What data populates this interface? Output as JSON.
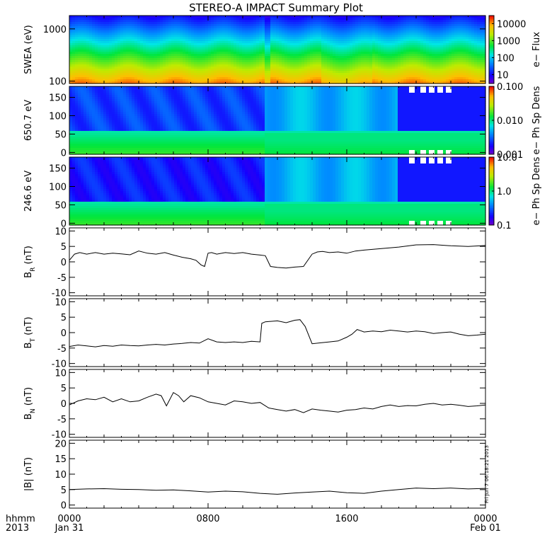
{
  "title": "STEREO-A IMPACT Summary Plot",
  "timestamp": "Fri Jun  7 06:18:21 2013",
  "x_axis": {
    "row_labels": [
      "hhmm",
      "2013"
    ],
    "ticks": [
      {
        "t": 0,
        "time": "0000",
        "date": "Jan 31"
      },
      {
        "t": 8,
        "time": "0800",
        "date": ""
      },
      {
        "t": 16,
        "time": "1600",
        "date": ""
      },
      {
        "t": 24,
        "time": "0000",
        "date": "Feb 01"
      }
    ]
  },
  "chart_data": [
    {
      "type": "heatmap",
      "ylabel": "SWEA (eV)",
      "y_scale": "log",
      "ylim": [
        90,
        1800
      ],
      "yticks": [
        100,
        1000
      ],
      "ytick_labels": [
        "100",
        "1000"
      ],
      "colorbar": {
        "label": "e− Flux",
        "scale": "log",
        "range": [
          3,
          30000
        ],
        "ticks": [
          10,
          100,
          1000,
          10000
        ],
        "tick_labels": [
          "10",
          "100",
          "1000",
          "10000"
        ]
      },
      "description_levels": {
        "low_energy_flux": 8000,
        "mid_energy_flux": 1000,
        "high_energy_flux": 20
      }
    },
    {
      "type": "heatmap",
      "ylabel": "650.7 eV",
      "y_scale": "linear",
      "ylim": [
        -5,
        180
      ],
      "yticks": [
        0,
        50,
        100,
        150
      ],
      "ytick_labels": [
        "0",
        "50",
        "100",
        "150"
      ],
      "colorbar": {
        "label": "e− Ph Sp Dens",
        "scale": "log",
        "range": [
          0.001,
          0.1
        ],
        "ticks": [
          0.001,
          0.01,
          0.1
        ],
        "tick_labels": [
          "0.001",
          "0.010",
          "0.100"
        ]
      }
    },
    {
      "type": "heatmap",
      "ylabel": "246.6 eV",
      "y_scale": "linear",
      "ylim": [
        -5,
        180
      ],
      "yticks": [
        0,
        50,
        100,
        150
      ],
      "ytick_labels": [
        "0",
        "50",
        "100",
        "150"
      ],
      "colorbar": {
        "label": "e− Ph Sp Dens",
        "scale": "log",
        "range": [
          0.1,
          10
        ],
        "ticks": [
          0.1,
          1,
          10
        ],
        "tick_labels": [
          "0.1",
          "1.0",
          "10.0"
        ]
      }
    },
    {
      "type": "line",
      "ylabel_main": "B",
      "ylabel_sub": "R",
      "ylabel_unit": "(nT)",
      "ylim": [
        -11,
        11
      ],
      "yticks": [
        -10,
        -5,
        0,
        5,
        10
      ],
      "ytick_labels": [
        "-10",
        "-5",
        "0",
        "5",
        "10"
      ],
      "x": [
        0,
        0.3,
        0.6,
        1,
        1.5,
        2,
        2.5,
        3,
        3.5,
        4,
        4.5,
        5,
        5.5,
        6,
        6.5,
        7,
        7.3,
        7.6,
        7.8,
        8.0,
        8.2,
        8.5,
        9,
        9.5,
        10,
        10.5,
        11,
        11.3,
        11.6,
        12,
        12.5,
        13,
        13.5,
        14,
        14.3,
        14.6,
        15,
        15.5,
        16,
        16.5,
        17,
        18,
        19,
        20,
        21,
        22,
        23,
        24
      ],
      "y": [
        0.5,
        2.5,
        3,
        2.5,
        3,
        2.5,
        2.8,
        2.6,
        2.3,
        3.5,
        2.8,
        2.5,
        3,
        2.2,
        1.5,
        1.0,
        0.5,
        -1.0,
        -1.5,
        2.8,
        3.0,
        2.5,
        3,
        2.7,
        3,
        2.5,
        2.2,
        2.0,
        -1.5,
        -1.8,
        -2.0,
        -1.7,
        -1.5,
        2.5,
        3.2,
        3.4,
        3.0,
        3.2,
        2.8,
        3.5,
        3.8,
        4.3,
        4.8,
        5.5,
        5.6,
        5.2,
        5.0,
        5.3
      ]
    },
    {
      "type": "line",
      "ylabel_main": "B",
      "ylabel_sub": "T",
      "ylabel_unit": "(nT)",
      "ylim": [
        -11,
        11
      ],
      "yticks": [
        -10,
        -5,
        0,
        5,
        10
      ],
      "ytick_labels": [
        "-10",
        "-5",
        "0",
        "5",
        "10"
      ],
      "x": [
        0,
        0.5,
        1,
        1.5,
        2,
        2.5,
        3,
        3.5,
        4,
        4.5,
        5,
        5.5,
        6,
        6.5,
        7,
        7.5,
        8,
        8.5,
        9,
        9.5,
        10,
        10.5,
        11,
        11.1,
        11.3,
        12,
        12.5,
        13,
        13.3,
        13.6,
        14,
        14.5,
        15,
        15.5,
        16,
        16.3,
        16.6,
        17,
        17.5,
        18,
        18.5,
        19,
        19.5,
        20,
        20.5,
        21,
        21.5,
        22,
        22.5,
        23,
        23.5,
        24
      ],
      "y": [
        -4.5,
        -4.0,
        -4.3,
        -4.6,
        -4.2,
        -4.4,
        -4.0,
        -4.2,
        -4.3,
        -4.0,
        -3.8,
        -4.0,
        -3.7,
        -3.5,
        -3.2,
        -3.4,
        -2.0,
        -3.0,
        -3.2,
        -3.0,
        -3.2,
        -2.8,
        -3.0,
        3.0,
        3.5,
        3.8,
        3.2,
        4.0,
        4.2,
        2.0,
        -3.6,
        -3.3,
        -3.0,
        -2.7,
        -1.5,
        -0.5,
        1.0,
        0.2,
        0.5,
        0.3,
        0.8,
        0.5,
        0.2,
        0.5,
        0.3,
        -0.3,
        0.0,
        0.2,
        -0.5,
        -1.0,
        -0.8,
        -0.5
      ]
    },
    {
      "type": "line",
      "ylabel_main": "B",
      "ylabel_sub": "N",
      "ylabel_unit": "(nT)",
      "ylim": [
        -11,
        11
      ],
      "yticks": [
        -10,
        -5,
        0,
        5,
        10
      ],
      "ytick_labels": [
        "-10",
        "-5",
        "0",
        "5",
        "10"
      ],
      "x": [
        0,
        0.5,
        1,
        1.5,
        2,
        2.5,
        3,
        3.5,
        4,
        4.5,
        5,
        5.3,
        5.6,
        6,
        6.3,
        6.6,
        7,
        7.5,
        8,
        8.5,
        9,
        9.5,
        10,
        10.5,
        11,
        11.5,
        12,
        12.5,
        13,
        13.5,
        14,
        14.5,
        15,
        15.5,
        16,
        16.5,
        17,
        17.5,
        18,
        18.5,
        19,
        19.5,
        20,
        20.5,
        21,
        21.5,
        22,
        22.5,
        23,
        23.5,
        24
      ],
      "y": [
        -0.5,
        0.8,
        1.5,
        1.2,
        2.0,
        0.5,
        1.5,
        0.5,
        0.8,
        2.0,
        3.0,
        2.5,
        -0.8,
        3.5,
        2.5,
        0.5,
        2.5,
        1.8,
        0.5,
        0.0,
        -0.5,
        0.8,
        0.5,
        0.0,
        0.3,
        -1.5,
        -2.0,
        -2.5,
        -2.0,
        -3.0,
        -1.8,
        -2.2,
        -2.5,
        -2.8,
        -2.2,
        -2.0,
        -1.5,
        -1.8,
        -1.0,
        -0.5,
        -1.0,
        -0.7,
        -0.8,
        -0.3,
        0.0,
        -0.5,
        -0.3,
        -0.6,
        -1.0,
        -0.8,
        -0.5
      ]
    },
    {
      "type": "line",
      "ylabel_main": "|B|",
      "ylabel_sub": "",
      "ylabel_unit": "(nT)",
      "ylim": [
        -1,
        21
      ],
      "yticks": [
        0,
        5,
        10,
        15,
        20
      ],
      "ytick_labels": [
        "0",
        "5",
        "10",
        "15",
        "20"
      ],
      "x": [
        0,
        1,
        2,
        3,
        4,
        5,
        6,
        7,
        8,
        9,
        10,
        11,
        12,
        13,
        14,
        15,
        16,
        17,
        18,
        19,
        20,
        21,
        22,
        23,
        24
      ],
      "y": [
        5.0,
        5.2,
        5.3,
        5.1,
        5.0,
        4.8,
        4.9,
        4.6,
        4.2,
        4.5,
        4.3,
        3.8,
        3.5,
        3.9,
        4.2,
        4.5,
        4.0,
        3.8,
        4.5,
        5.0,
        5.5,
        5.3,
        5.5,
        5.2,
        5.4
      ]
    }
  ],
  "colors": {
    "line": "#000000",
    "data_gap": "#ffffff"
  }
}
